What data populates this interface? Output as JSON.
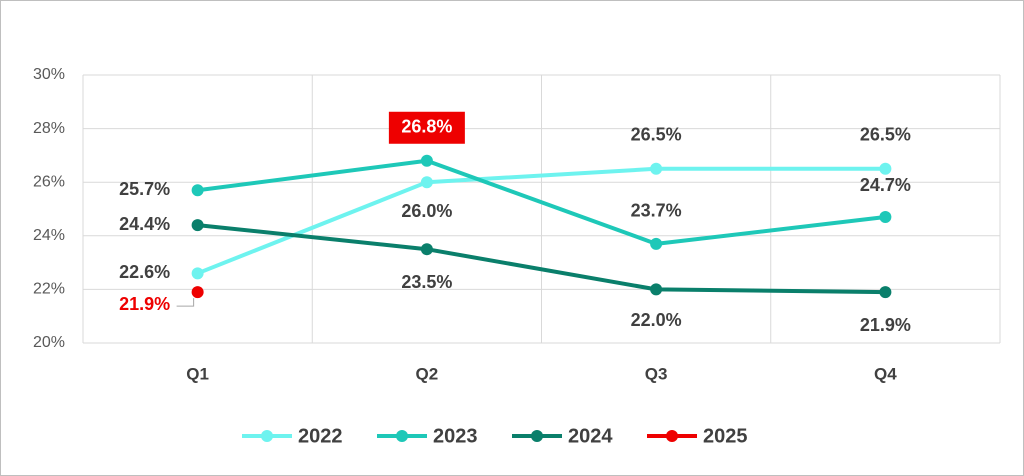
{
  "chart_data": {
    "type": "line",
    "categories": [
      "Q1",
      "Q2",
      "Q3",
      "Q4"
    ],
    "series": [
      {
        "name": "2022",
        "color": "#6ef3ef",
        "values": [
          22.6,
          26.0,
          26.5,
          26.5
        ],
        "value_labels": [
          "22.6%",
          "26.0%",
          "26.5%",
          "26.5%"
        ]
      },
      {
        "name": "2023",
        "color": "#1ec8b8",
        "values": [
          25.7,
          26.8,
          23.7,
          24.7
        ],
        "value_labels": [
          "25.7%",
          "26.8%",
          "23.7%",
          "24.7%"
        ]
      },
      {
        "name": "2024",
        "color": "#0a7f6b",
        "values": [
          24.4,
          23.5,
          22.0,
          21.9
        ],
        "value_labels": [
          "24.4%",
          "23.5%",
          "22.0%",
          "21.9%"
        ]
      },
      {
        "name": "2025",
        "color": "#ee0000",
        "values": [
          21.9,
          null,
          null,
          null
        ],
        "value_labels": [
          "21.9%",
          null,
          null,
          null
        ]
      }
    ],
    "ylim": [
      20,
      30
    ],
    "yticks": [
      {
        "value": 20,
        "label": "20%"
      },
      {
        "value": 22,
        "label": "22%"
      },
      {
        "value": 24,
        "label": "24%"
      },
      {
        "value": 26,
        "label": "26%"
      },
      {
        "value": 28,
        "label": "28%"
      },
      {
        "value": 30,
        "label": "30%"
      }
    ],
    "grid": true,
    "legend": "bottom"
  }
}
